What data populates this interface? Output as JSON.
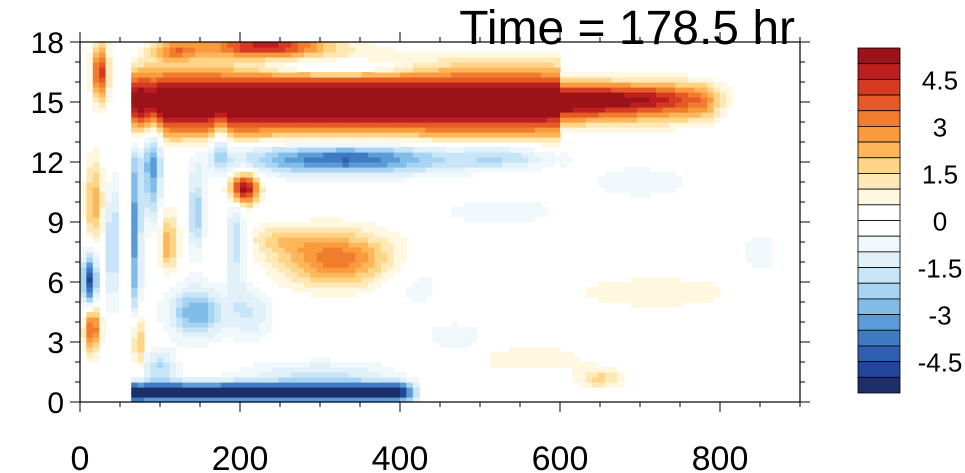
{
  "chart_data": {
    "type": "heatmap",
    "title": "Time = 178.5 hr",
    "xlabel": "",
    "ylabel": "",
    "xlim": [
      0,
      900
    ],
    "ylim": [
      0,
      18
    ],
    "x_ticks": [
      "0",
      "200",
      "400",
      "600",
      "800"
    ],
    "x_tick_values": [
      0,
      200,
      400,
      600,
      800
    ],
    "y_ticks": [
      "0",
      "3",
      "6",
      "9",
      "12",
      "15",
      "18"
    ],
    "y_tick_values": [
      0,
      3,
      6,
      9,
      12,
      15,
      18
    ],
    "colorbar": {
      "levels": [
        -5.5,
        -5,
        -4.5,
        -4,
        -3.5,
        -3,
        -2.5,
        -2,
        -1.5,
        -1,
        -0.5,
        0,
        0.5,
        1,
        1.5,
        2,
        2.5,
        3,
        3.5,
        4,
        4.5,
        5,
        5.5
      ],
      "labels": [
        "4.5",
        "3",
        "1.5",
        "0",
        "-1.5",
        "-3",
        "-4.5"
      ],
      "label_values": [
        4.5,
        3,
        1.5,
        0,
        -1.5,
        -3,
        -4.5
      ],
      "colors": [
        "#1c2f6b",
        "#22469a",
        "#2f5fb0",
        "#3f7bc4",
        "#5b9bd6",
        "#80bde8",
        "#a6d4f2",
        "#c8e5f7",
        "#e1f1fa",
        "#f0f8fc",
        "#ffffff",
        "#ffffff",
        "#fff7e0",
        "#fee9b6",
        "#fed486",
        "#fdb65a",
        "#f99a3c",
        "#f17c2e",
        "#e65a26",
        "#d63a22",
        "#bd1f21",
        "#9b1219"
      ]
    },
    "features": [
      {
        "x": 450,
        "y": 15.0,
        "v": 5.5
      },
      {
        "x": 700,
        "y": 15.3,
        "v": 3.0
      },
      {
        "x": 330,
        "y": 12.2,
        "v": -4.0
      },
      {
        "x": 320,
        "y": 7.2,
        "v": 3.2
      },
      {
        "x": 210,
        "y": 10.7,
        "v": 5.0
      },
      {
        "x": 250,
        "y": 0.5,
        "v": -5.0
      },
      {
        "x": 15,
        "y": 6.0,
        "v": -4.5
      },
      {
        "x": 12,
        "y": 3.8,
        "v": 4.0
      },
      {
        "x": 720,
        "y": 5.5,
        "v": 1.0
      },
      {
        "x": 650,
        "y": 1.2,
        "v": 1.5
      }
    ]
  }
}
